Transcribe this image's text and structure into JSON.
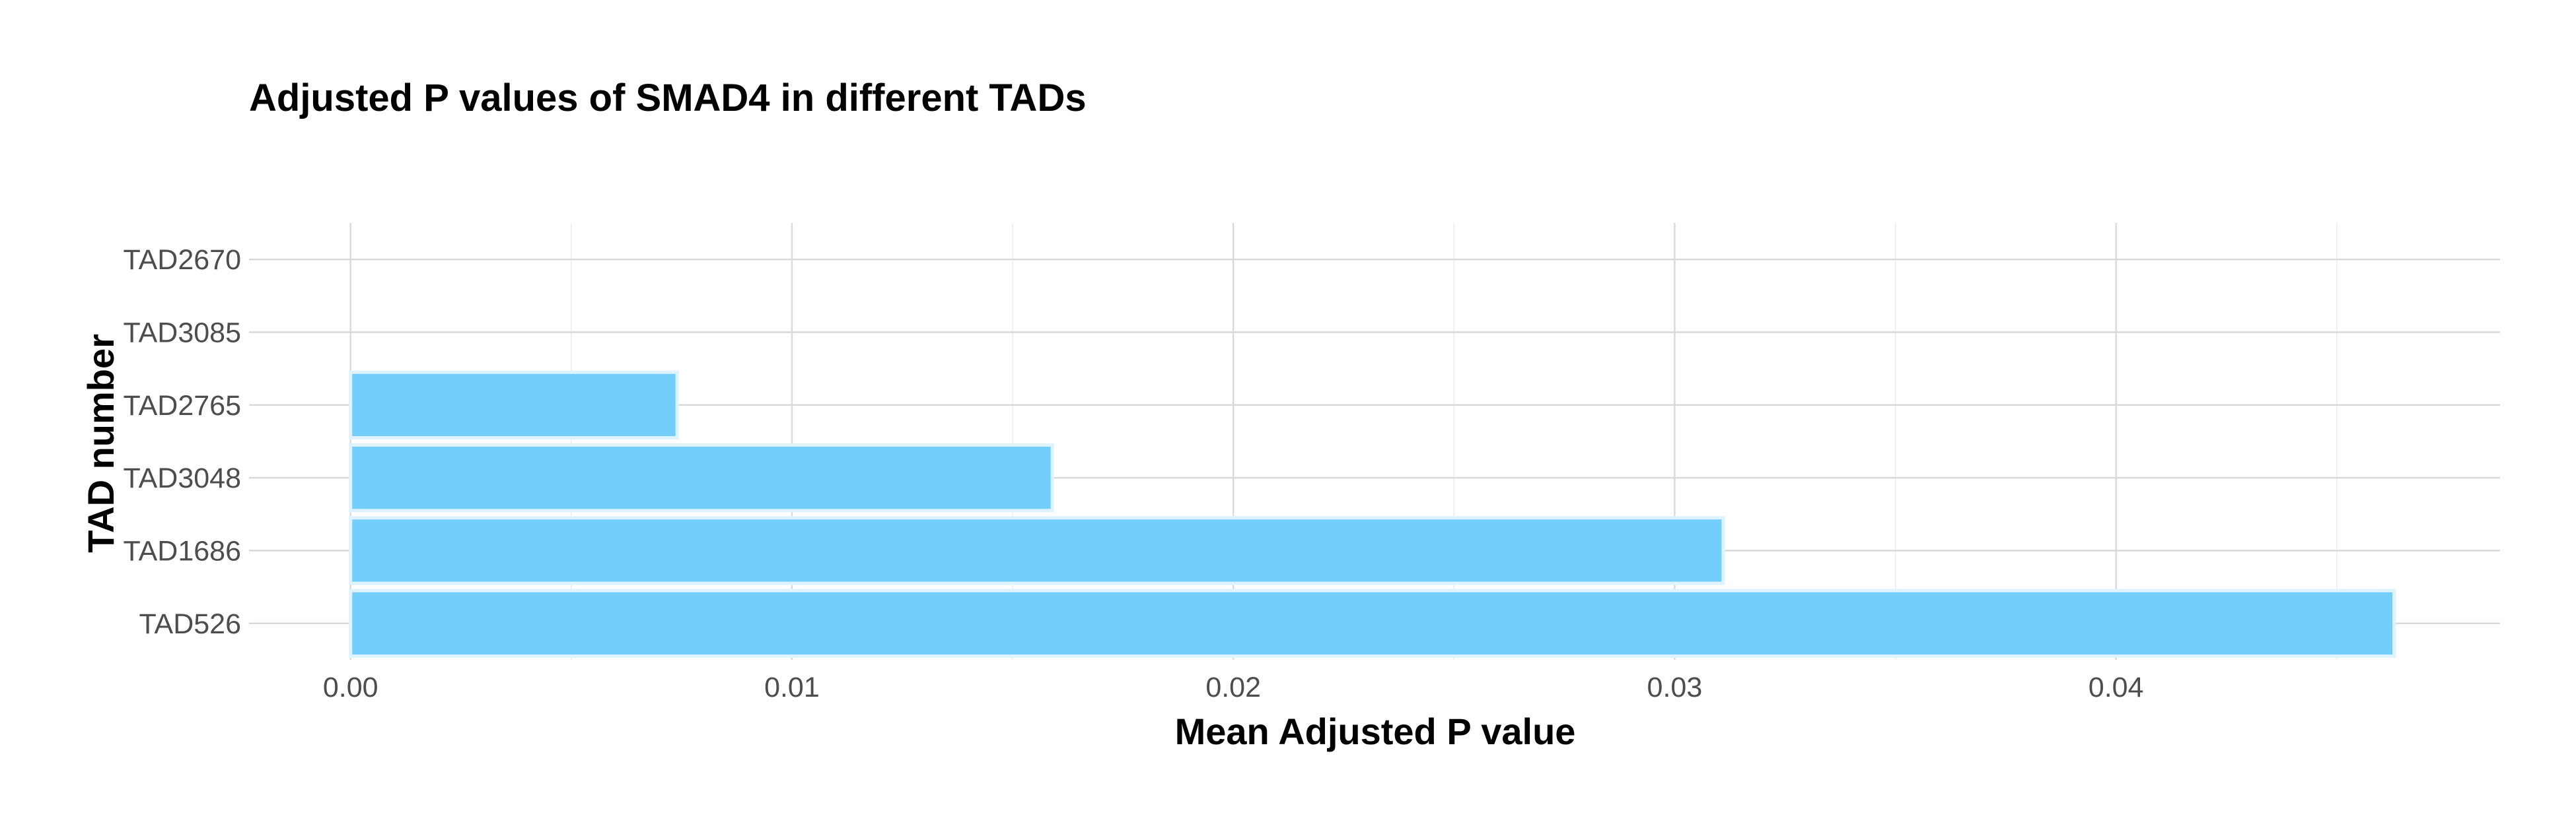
{
  "chart_data": {
    "type": "bar",
    "orientation": "horizontal",
    "title": "Adjusted P values of SMAD4 in different TADs",
    "xlabel": "Mean Adjusted P value",
    "ylabel": "TAD number",
    "categories": [
      "TAD526",
      "TAD1686",
      "TAD3048",
      "TAD2765",
      "TAD3085",
      "TAD2670"
    ],
    "values": [
      0.0463,
      0.0311,
      0.0159,
      0.0074,
      0.0,
      0.0
    ],
    "xlim": [
      -0.0023,
      0.0487
    ],
    "xticks": [
      0.0,
      0.01,
      0.02,
      0.03,
      0.04
    ],
    "xtick_labels": [
      "0.00",
      "0.01",
      "0.02",
      "0.03",
      "0.04"
    ],
    "grid": true,
    "bar_color": "#74CEFC",
    "bar_edge_color": "#dff3fe",
    "legend": "none"
  }
}
